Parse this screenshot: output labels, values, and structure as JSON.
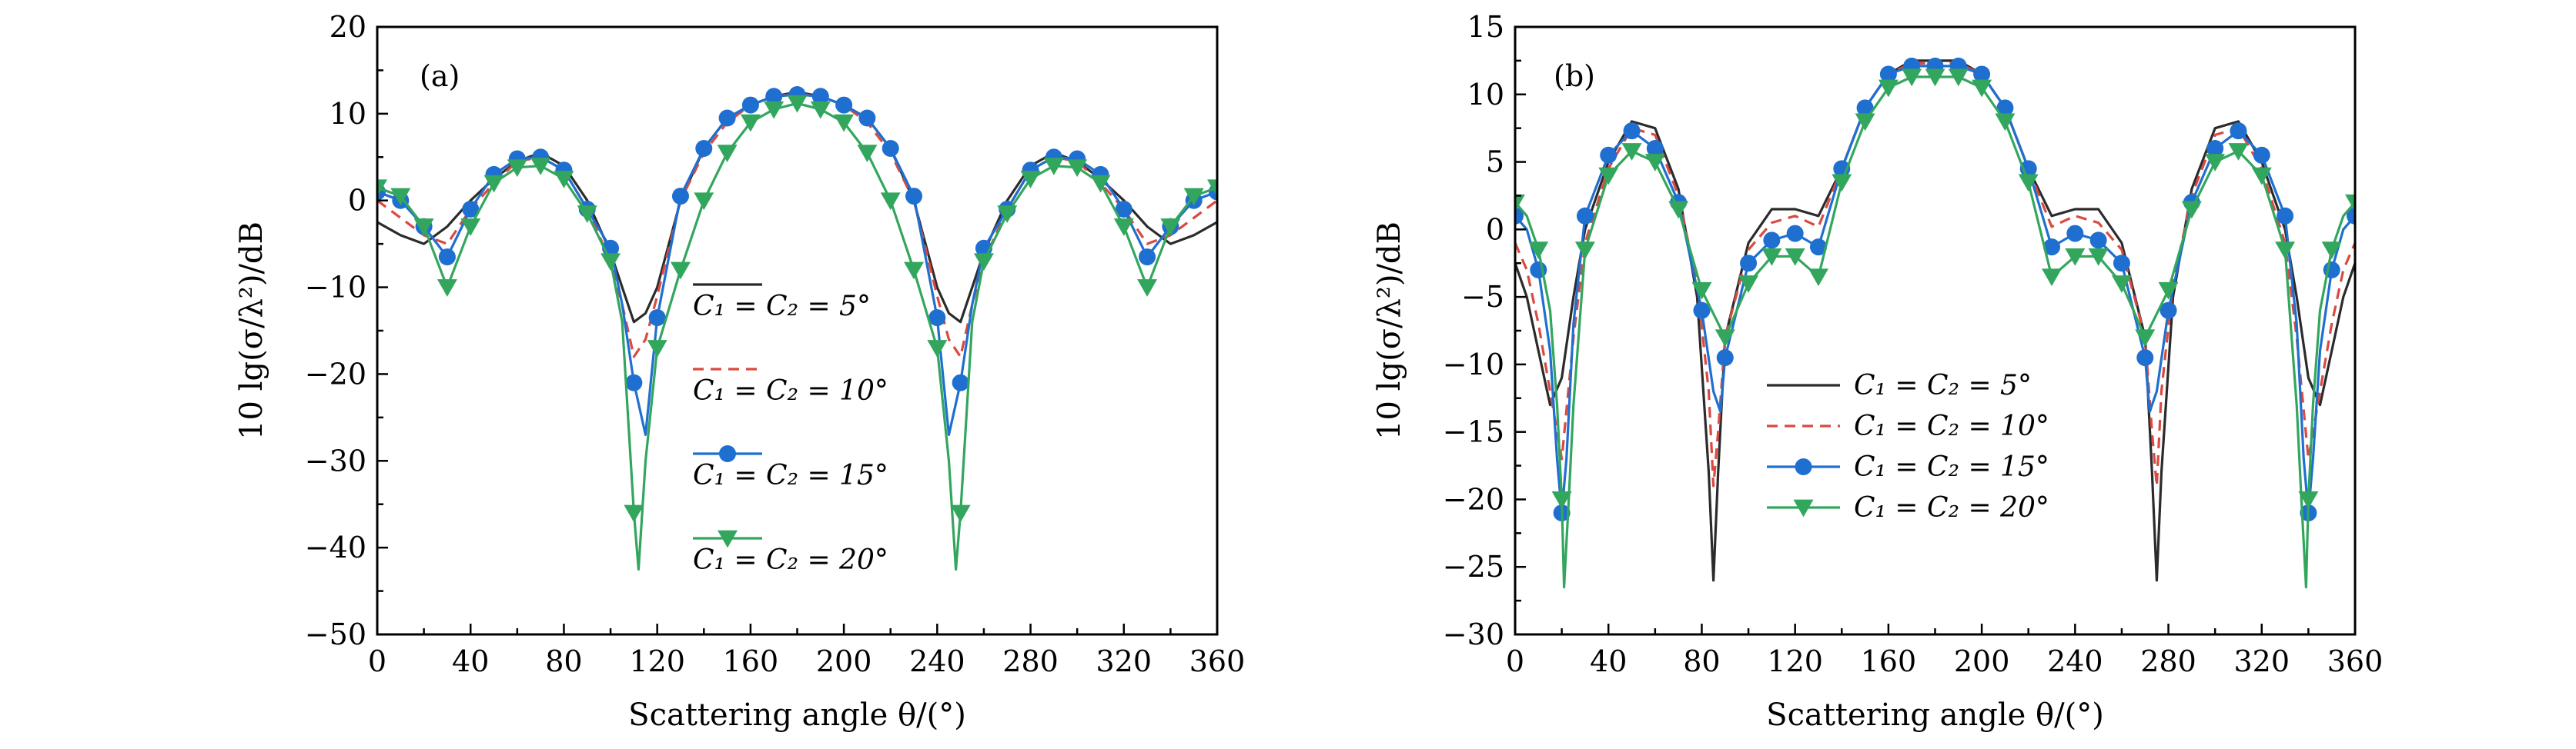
{
  "colors": {
    "c5": "#2b2b2b",
    "c10": "#d94a41",
    "c15": "#1f6fd0",
    "c20": "#33a65e"
  },
  "chart_data": [
    {
      "type": "line",
      "panel_label": "(a)",
      "xlabel": "Scattering angle θ/(°)",
      "ylabel": "10 lg(σ/λ²)/dB",
      "xlim": [
        0,
        360
      ],
      "ylim": [
        -50,
        20
      ],
      "xticks": [
        0,
        40,
        80,
        120,
        160,
        200,
        240,
        280,
        320,
        360
      ],
      "xtick_labels": [
        "0",
        "40",
        "80",
        "120",
        "160",
        "200",
        "240",
        "280",
        "320",
        "360"
      ],
      "yticks": [
        -50,
        -40,
        -30,
        -20,
        -10,
        0,
        10,
        20
      ],
      "ytick_labels": [
        "−50",
        "−40",
        "−30",
        "−20",
        "−10",
        "0",
        "10",
        "20"
      ],
      "grid": false,
      "legend_position": "center-right",
      "legend_layout": "stacked",
      "series": [
        {
          "name": "C₁ = C₂ = 5°",
          "color_key": "c5",
          "dash": "solid",
          "marker": "none",
          "x": [
            0,
            10,
            20,
            30,
            40,
            50,
            60,
            70,
            80,
            90,
            100,
            105,
            110,
            115,
            120,
            130,
            140,
            150,
            160,
            170,
            180,
            190,
            200,
            210,
            220,
            230,
            240,
            245,
            250,
            255,
            260,
            270,
            280,
            290,
            300,
            310,
            320,
            330,
            340,
            350,
            360
          ],
          "y": [
            -2.5,
            -4,
            -5,
            -3,
            0,
            2.5,
            4.5,
            5.5,
            4,
            0,
            -6,
            -10,
            -14,
            -13,
            -10,
            0,
            6,
            9.5,
            11,
            12,
            12.5,
            12,
            11,
            9.5,
            6,
            0,
            -10,
            -13,
            -14,
            -10,
            -6,
            0,
            4,
            5.5,
            4.5,
            2.5,
            0,
            -3,
            -5,
            -4,
            -2.5
          ]
        },
        {
          "name": "C₁ = C₂ = 10°",
          "color_key": "c10",
          "dash": "dashed",
          "marker": "none",
          "x": [
            0,
            10,
            20,
            30,
            40,
            50,
            60,
            70,
            80,
            90,
            100,
            105,
            110,
            115,
            120,
            130,
            140,
            150,
            160,
            170,
            180,
            190,
            200,
            210,
            220,
            230,
            240,
            245,
            250,
            255,
            260,
            270,
            280,
            290,
            300,
            310,
            320,
            330,
            340,
            350,
            360
          ],
          "y": [
            0,
            -2,
            -4,
            -5,
            -1,
            2,
            4.5,
            5,
            3.5,
            -1,
            -7,
            -12,
            -18,
            -16,
            -11,
            0,
            5.5,
            9,
            11,
            12,
            12.3,
            12,
            11,
            9,
            5.5,
            0,
            -11,
            -16,
            -18,
            -12,
            -7,
            -1,
            3.5,
            5,
            4.5,
            2,
            -1,
            -5,
            -4,
            -2,
            0
          ]
        },
        {
          "name": "C₁ = C₂ = 15°",
          "color_key": "c15",
          "dash": "solid",
          "marker": "circle",
          "x": [
            0,
            10,
            20,
            30,
            40,
            50,
            60,
            70,
            80,
            90,
            100,
            105,
            110,
            115,
            120,
            130,
            140,
            150,
            160,
            170,
            180,
            190,
            200,
            210,
            220,
            230,
            240,
            245,
            250,
            255,
            260,
            270,
            280,
            290,
            300,
            310,
            320,
            330,
            340,
            350,
            360
          ],
          "y": [
            1,
            0,
            -3,
            -6.5,
            -1,
            3,
            4.8,
            5,
            3.5,
            -1,
            -5.5,
            -12,
            -21,
            -27,
            -13.5,
            0.5,
            6,
            9.5,
            11,
            12,
            12.2,
            12,
            11,
            9.5,
            6,
            0.5,
            -13.5,
            -27,
            -21,
            -12,
            -5.5,
            -1,
            3.5,
            5,
            4.8,
            3,
            -1,
            -6.5,
            -3,
            0,
            1
          ]
        },
        {
          "name": "C₁ = C₂ = 20°",
          "color_key": "c20",
          "dash": "solid",
          "marker": "triangle-down",
          "x": [
            0,
            10,
            20,
            30,
            40,
            50,
            60,
            70,
            80,
            90,
            100,
            105,
            110,
            112,
            115,
            120,
            130,
            140,
            150,
            160,
            170,
            180,
            190,
            200,
            210,
            220,
            230,
            240,
            245,
            248,
            250,
            255,
            260,
            270,
            280,
            290,
            300,
            310,
            320,
            330,
            340,
            350,
            360
          ],
          "y": [
            1.5,
            0.5,
            -3,
            -10,
            -3,
            2,
            3.8,
            4,
            2.5,
            -1.5,
            -7,
            -14,
            -36,
            -42.5,
            -30,
            -17,
            -8,
            0,
            5.5,
            9,
            10.5,
            11.2,
            10.5,
            9,
            5.5,
            0,
            -8,
            -17,
            -30,
            -42.5,
            -36,
            -14,
            -7,
            -1.5,
            2.5,
            4,
            3.8,
            2,
            -3,
            -10,
            -3,
            0.5,
            1.5
          ]
        }
      ]
    },
    {
      "type": "line",
      "panel_label": "(b)",
      "xlabel": "Scattering angle θ/(°)",
      "ylabel": "10 lg(σ/λ²)/dB",
      "xlim": [
        0,
        360
      ],
      "ylim": [
        -30,
        15
      ],
      "xticks": [
        0,
        40,
        80,
        120,
        160,
        200,
        240,
        280,
        320,
        360
      ],
      "xtick_labels": [
        "0",
        "40",
        "80",
        "120",
        "160",
        "200",
        "240",
        "280",
        "320",
        "360"
      ],
      "yticks": [
        -30,
        -25,
        -20,
        -15,
        -10,
        -5,
        0,
        5,
        10,
        15
      ],
      "ytick_labels": [
        "−30",
        "−25",
        "−20",
        "−15",
        "−10",
        "−5",
        "0",
        "5",
        "10",
        "15"
      ],
      "grid": false,
      "legend_position": "lower-center",
      "legend_layout": "inline",
      "series": [
        {
          "name": "C₁ = C₂ = 5°",
          "color_key": "c5",
          "dash": "solid",
          "marker": "none",
          "x": [
            0,
            5,
            10,
            15,
            20,
            25,
            30,
            40,
            50,
            60,
            70,
            78,
            83,
            85,
            87,
            90,
            100,
            110,
            120,
            130,
            140,
            150,
            160,
            170,
            180,
            190,
            200,
            210,
            220,
            230,
            240,
            250,
            260,
            270,
            273,
            275,
            277,
            282,
            290,
            300,
            310,
            320,
            330,
            335,
            340,
            345,
            350,
            355,
            360
          ],
          "y": [
            -2.5,
            -5,
            -9,
            -13,
            -11,
            -5,
            0,
            5,
            8,
            7.5,
            3,
            -5,
            -18,
            -26,
            -18,
            -8,
            -1,
            1.5,
            1.5,
            1,
            4.5,
            9,
            11.5,
            12.5,
            12.5,
            12.5,
            11.5,
            9,
            4.5,
            1,
            1.5,
            1.5,
            -1,
            -8,
            -18,
            -26,
            -18,
            -5,
            3,
            7.5,
            8,
            5,
            0,
            -5,
            -11,
            -13,
            -9,
            -5,
            -2.5
          ]
        },
        {
          "name": "C₁ = C₂ = 10°",
          "color_key": "c10",
          "dash": "dashed",
          "marker": "none",
          "x": [
            0,
            5,
            10,
            15,
            20,
            25,
            30,
            40,
            50,
            60,
            70,
            78,
            83,
            85,
            87,
            90,
            100,
            110,
            120,
            130,
            140,
            150,
            160,
            170,
            180,
            190,
            200,
            210,
            220,
            230,
            240,
            250,
            260,
            270,
            273,
            275,
            277,
            282,
            290,
            300,
            310,
            320,
            330,
            335,
            340,
            345,
            350,
            355,
            360
          ],
          "y": [
            -1,
            -3,
            -7,
            -12,
            -17,
            -8,
            -1,
            4.5,
            7.5,
            7,
            2.5,
            -4,
            -12,
            -19,
            -15,
            -8,
            -1.5,
            0.5,
            1,
            0.2,
            4.5,
            9,
            11.5,
            12.3,
            12.3,
            12.3,
            11.5,
            9,
            4.5,
            0.2,
            1,
            0.5,
            -1.5,
            -8,
            -15,
            -19,
            -12,
            -4,
            2.5,
            7,
            7.5,
            4.5,
            -1,
            -8,
            -17,
            -12,
            -7,
            -3,
            -1
          ]
        },
        {
          "name": "C₁ = C₂ = 15°",
          "color_key": "c15",
          "dash": "solid",
          "marker": "circle",
          "x": [
            0,
            5,
            10,
            15,
            18,
            20,
            22,
            25,
            30,
            40,
            50,
            60,
            70,
            80,
            85,
            88,
            90,
            100,
            110,
            120,
            130,
            140,
            150,
            160,
            170,
            180,
            190,
            200,
            210,
            220,
            230,
            240,
            250,
            260,
            270,
            272,
            275,
            280,
            290,
            300,
            310,
            320,
            330,
            335,
            338,
            340,
            342,
            345,
            350,
            355,
            360
          ],
          "y": [
            1,
            0,
            -3,
            -9,
            -17,
            -21,
            -17,
            -7,
            1,
            5.5,
            7.3,
            6,
            2,
            -6,
            -12,
            -13.5,
            -9.5,
            -2.5,
            -0.8,
            -0.3,
            -1.3,
            4.5,
            9,
            11.5,
            12.1,
            12.1,
            12.1,
            11.5,
            9,
            4.5,
            -1.3,
            -0.3,
            -0.8,
            -2.5,
            -9.5,
            -13.5,
            -12,
            -6,
            2,
            6,
            7.3,
            5.5,
            1,
            -7,
            -17,
            -21,
            -17,
            -9,
            -3,
            0,
            1
          ]
        },
        {
          "name": "C₁ = C₂ = 20°",
          "color_key": "c20",
          "dash": "solid",
          "marker": "triangle-down",
          "x": [
            0,
            5,
            10,
            15,
            18,
            20,
            21,
            23,
            25,
            30,
            40,
            50,
            60,
            70,
            80,
            90,
            100,
            110,
            120,
            130,
            140,
            150,
            160,
            170,
            180,
            190,
            200,
            210,
            220,
            230,
            240,
            250,
            260,
            270,
            280,
            290,
            300,
            310,
            320,
            330,
            335,
            337,
            339,
            340,
            342,
            345,
            350,
            355,
            360
          ],
          "y": [
            2,
            1,
            -1.5,
            -6,
            -13,
            -20,
            -26.5,
            -20,
            -13,
            -1.5,
            4,
            5.8,
            5,
            1.5,
            -4.5,
            -8,
            -4,
            -2,
            -2,
            -3.5,
            3.5,
            8,
            10.5,
            11.3,
            11.3,
            11.3,
            10.5,
            8,
            3.5,
            -3.5,
            -2,
            -2,
            -4,
            -8,
            -4.5,
            1.5,
            5,
            5.8,
            4,
            -1.5,
            -13,
            -20,
            -26.5,
            -20,
            -13,
            -6,
            -1.5,
            1,
            2
          ]
        }
      ]
    }
  ]
}
